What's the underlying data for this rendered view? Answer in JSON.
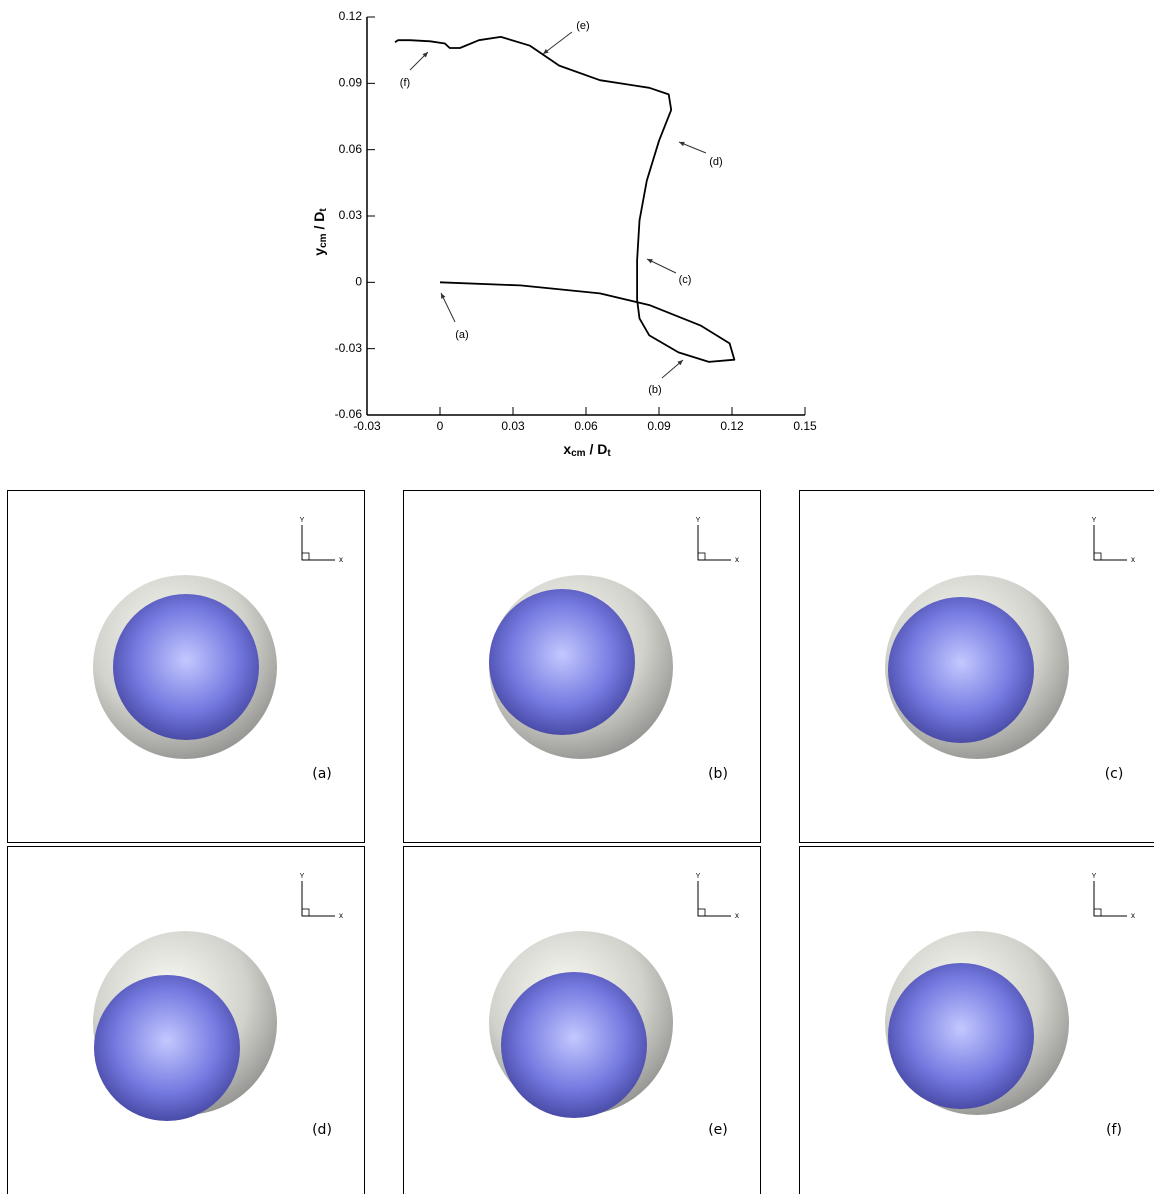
{
  "chart_data": {
    "type": "line",
    "xlabel": [
      "x",
      "cm",
      " / D",
      "t"
    ],
    "ylabel": [
      "y",
      "cm",
      " / D",
      "t"
    ],
    "x": [
      0,
      0.033,
      0.0657,
      0.0863,
      0.107,
      0.119,
      0.121,
      0.1105,
      0.098,
      0.086,
      0.082,
      0.081,
      0.081,
      0.082,
      0.085,
      0.09,
      0.095,
      0.094,
      0.086,
      0.0657,
      0.049,
      0.037,
      0.025,
      0.016,
      0.0082,
      0.004,
      0.002,
      -0.004,
      -0.0123,
      -0.0173,
      -0.0185
    ],
    "values": [
      0,
      -0.0014,
      -0.005,
      -0.0104,
      -0.0195,
      -0.0276,
      -0.035,
      -0.036,
      -0.0317,
      -0.024,
      -0.0163,
      -0.008,
      0.01,
      0.028,
      0.046,
      0.064,
      0.078,
      0.085,
      0.088,
      0.0914,
      0.098,
      0.107,
      0.111,
      0.1095,
      0.106,
      0.106,
      0.108,
      0.109,
      0.1095,
      0.1095,
      0.1086
    ],
    "color": "#000000",
    "xlim": [
      -0.03,
      0.15
    ],
    "xticks": [
      -0.03,
      0,
      0.03,
      0.06,
      0.09,
      0.12,
      0.15
    ],
    "ylim": [
      -0.06,
      0.12
    ],
    "yticks": [
      -0.06,
      -0.03,
      0,
      0.03,
      0.06,
      0.09,
      0.12
    ],
    "annotations": [
      "(a)",
      "(b)",
      "(c)",
      "(d)",
      "(e)",
      "(f)"
    ]
  },
  "panels": [
    {
      "label": "(a)"
    },
    {
      "label": "(b)"
    },
    {
      "label": "(c)"
    },
    {
      "label": "(d)"
    },
    {
      "label": "(e)"
    },
    {
      "label": "(f)"
    }
  ],
  "triad": {
    "x": "x",
    "y": "Y"
  }
}
